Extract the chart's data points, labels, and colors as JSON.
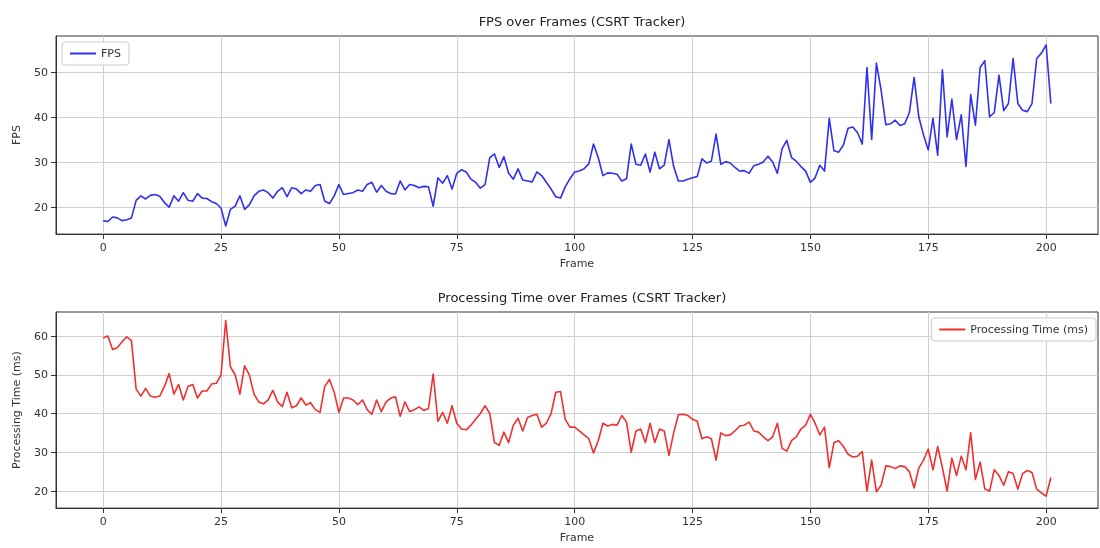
{
  "chart_data": [
    {
      "type": "line",
      "title": "FPS over Frames (CSRT Tracker)",
      "xlabel": "Frame",
      "ylabel": "FPS",
      "legend": "top left",
      "grid": true,
      "xlim": [
        -10,
        211
      ],
      "xticks": [
        0,
        25,
        50,
        75,
        100,
        125,
        150,
        175,
        200
      ],
      "ylim": [
        14,
        58
      ],
      "yticks": [
        20,
        30,
        40,
        50
      ],
      "x": [
        0,
        1,
        2,
        3,
        4,
        5,
        6,
        7,
        8,
        9,
        10,
        11,
        12,
        13,
        14,
        15,
        16,
        17,
        18,
        19,
        20,
        21,
        22,
        23,
        24,
        25,
        26,
        27,
        28,
        29,
        30,
        31,
        32,
        33,
        34,
        35,
        36,
        37,
        38,
        39,
        40,
        41,
        42,
        43,
        44,
        45,
        46,
        47,
        48,
        49,
        50,
        51,
        52,
        53,
        54,
        55,
        56,
        57,
        58,
        59,
        60,
        61,
        62,
        63,
        64,
        65,
        66,
        67,
        68,
        69,
        70,
        71,
        72,
        73,
        74,
        75,
        76,
        77,
        78,
        79,
        80,
        81,
        82,
        83,
        84,
        85,
        86,
        87,
        88,
        89,
        90,
        91,
        92,
        93,
        94,
        95,
        96,
        97,
        98,
        99,
        100,
        101,
        102,
        103,
        104,
        105,
        106,
        107,
        108,
        109,
        110,
        111,
        112,
        113,
        114,
        115,
        116,
        117,
        118,
        119,
        120,
        121,
        122,
        123,
        124,
        125,
        126,
        127,
        128,
        129,
        130,
        131,
        132,
        133,
        134,
        135,
        136,
        137,
        138,
        139,
        140,
        141,
        142,
        143,
        144,
        145,
        146,
        147,
        148,
        149,
        150,
        151,
        152,
        153,
        154,
        155,
        156,
        157,
        158,
        159,
        160,
        161,
        162,
        163,
        164,
        165,
        166,
        167,
        168,
        169,
        170,
        171,
        172,
        173,
        174,
        175,
        176,
        177,
        178,
        179,
        180,
        181,
        182,
        183,
        184,
        185,
        186,
        187,
        188,
        189,
        190,
        191,
        192,
        193,
        194,
        195,
        196,
        197,
        198,
        199,
        200,
        201
      ],
      "series": [
        {
          "name": "FPS",
          "color": "#3030ee",
          "values": [
            17,
            16.8,
            17.8,
            17.6,
            17,
            17.2,
            17.6,
            21.5,
            22.5,
            21.8,
            22.6,
            22.8,
            22.4,
            21,
            20,
            22.5,
            21.3,
            23.2,
            21.5,
            21.3,
            23,
            22,
            21.9,
            21.2,
            20.8,
            19.8,
            15.8,
            19.5,
            20.2,
            22.5,
            19.5,
            20.5,
            22.5,
            23.5,
            23.8,
            23.2,
            22,
            23.5,
            24.3,
            22.3,
            24.3,
            24,
            23,
            23.8,
            23.5,
            24.8,
            25,
            21.3,
            20.8,
            22.5,
            25,
            22.8,
            23,
            23.2,
            23.8,
            23.5,
            25,
            25.5,
            23.3,
            24.8,
            23.5,
            23,
            22.9,
            25.8,
            23.8,
            25,
            24.8,
            24.3,
            24.6,
            24.5,
            20.2,
            26.5,
            25.3,
            27,
            24,
            27.5,
            28.3,
            27.8,
            26.2,
            25.5,
            24.2,
            25,
            31,
            31.8,
            28.8,
            31.2,
            27.5,
            26.2,
            28.5,
            26,
            25.8,
            25.6,
            27.8,
            27,
            25.5,
            24,
            22.3,
            22,
            24.5,
            26.3,
            27.8,
            28,
            28.5,
            29.6,
            34,
            31,
            27,
            27.6,
            27.5,
            27.3,
            25.8,
            26.3,
            34,
            29.5,
            29.3,
            31.8,
            27.8,
            32.2,
            28.5,
            29.3,
            35,
            29,
            25.8,
            25.8,
            26.2,
            26.5,
            26.8,
            30.7,
            29.8,
            30.2,
            36.2,
            29.5,
            30.1,
            29.8,
            28.8,
            28,
            28.1,
            27.5,
            29.2,
            29.5,
            30,
            31.3,
            30,
            27.5,
            33,
            34.8,
            31,
            30.2,
            29,
            28,
            25.5,
            26.5,
            29.3,
            28,
            39.7,
            32.5,
            32.2,
            33.8,
            37.5,
            37.8,
            36.5,
            34,
            51,
            35,
            52,
            46,
            38.3,
            38.5,
            39.3,
            38.1,
            38.5,
            41,
            48.8,
            40,
            36,
            32.7,
            39.7,
            31.5,
            50.5,
            35.6,
            44,
            35,
            40.5,
            29,
            45,
            38.2,
            51,
            52.5,
            40,
            41,
            49.3,
            41.4,
            43,
            53,
            43,
            41.5,
            41.2,
            43,
            53,
            54.2,
            56,
            43
          ]
        }
      ]
    },
    {
      "type": "line",
      "title": "Processing Time over Frames (CSRT Tracker)",
      "xlabel": "Frame",
      "ylabel": "Processing Time (ms)",
      "legend": "top right",
      "grid": true,
      "xlim": [
        -10,
        211
      ],
      "xticks": [
        0,
        25,
        50,
        75,
        100,
        125,
        150,
        175,
        200
      ],
      "ylim": [
        15.6,
        66.2
      ],
      "yticks": [
        20,
        30,
        40,
        50,
        60
      ],
      "x": [
        0,
        1,
        2,
        3,
        4,
        5,
        6,
        7,
        8,
        9,
        10,
        11,
        12,
        13,
        14,
        15,
        16,
        17,
        18,
        19,
        20,
        21,
        22,
        23,
        24,
        25,
        26,
        27,
        28,
        29,
        30,
        31,
        32,
        33,
        34,
        35,
        36,
        37,
        38,
        39,
        40,
        41,
        42,
        43,
        44,
        45,
        46,
        47,
        48,
        49,
        50,
        51,
        52,
        53,
        54,
        55,
        56,
        57,
        58,
        59,
        60,
        61,
        62,
        63,
        64,
        65,
        66,
        67,
        68,
        69,
        70,
        71,
        72,
        73,
        74,
        75,
        76,
        77,
        78,
        79,
        80,
        81,
        82,
        83,
        84,
        85,
        86,
        87,
        88,
        89,
        90,
        91,
        92,
        93,
        94,
        95,
        96,
        97,
        98,
        99,
        100,
        101,
        102,
        103,
        104,
        105,
        106,
        107,
        108,
        109,
        110,
        111,
        112,
        113,
        114,
        115,
        116,
        117,
        118,
        119,
        120,
        121,
        122,
        123,
        124,
        125,
        126,
        127,
        128,
        129,
        130,
        131,
        132,
        133,
        134,
        135,
        136,
        137,
        138,
        139,
        140,
        141,
        142,
        143,
        144,
        145,
        146,
        147,
        148,
        149,
        150,
        151,
        152,
        153,
        154,
        155,
        156,
        157,
        158,
        159,
        160,
        161,
        162,
        163,
        164,
        165,
        166,
        167,
        168,
        169,
        170,
        171,
        172,
        173,
        174,
        175,
        176,
        177,
        178,
        179,
        180,
        181,
        182,
        183,
        184,
        185,
        186,
        187,
        188,
        189,
        190,
        191,
        192,
        193,
        194,
        195,
        196,
        197,
        198,
        199,
        200,
        201
      ],
      "series": [
        {
          "name": "Processing Time (ms)",
          "color": "#ee3030",
          "values": [
            59.5,
            60,
            56.5,
            57,
            58.5,
            59.8,
            58.8,
            46.3,
            44.5,
            46.5,
            44.5,
            44.2,
            44.5,
            47,
            50.3,
            45,
            47.5,
            43.5,
            47,
            47.5,
            44,
            45.8,
            45.8,
            47.6,
            47.8,
            50,
            64,
            52,
            50,
            45,
            52.3,
            50,
            45,
            43,
            42.5,
            43.5,
            46,
            43,
            41.8,
            45.5,
            41.5,
            42,
            44,
            42.2,
            42.8,
            41,
            40.3,
            47,
            48.8,
            45.5,
            40.3,
            44,
            44,
            43.5,
            42.3,
            43.5,
            41,
            39.8,
            43.5,
            40.5,
            43,
            44,
            44.3,
            39.3,
            43,
            40.5,
            41,
            41.7,
            40.8,
            41.3,
            50.2,
            38,
            40.3,
            37.5,
            42,
            37.5,
            36,
            35.8,
            37,
            38.5,
            40,
            42,
            40,
            32.5,
            31.8,
            35.2,
            32.5,
            37,
            38.8,
            35.5,
            39,
            39.5,
            39.8,
            36.5,
            37.5,
            40,
            45.5,
            45.7,
            38.5,
            36.5,
            36.5,
            35.5,
            34.5,
            33.5,
            29.8,
            33,
            37.5,
            36.8,
            37.2,
            37,
            39.5,
            37.8,
            30,
            35.5,
            36,
            32.5,
            37.5,
            32.5,
            36,
            35.5,
            29.2,
            35,
            39.7,
            39.8,
            39.5,
            38.5,
            38,
            33.5,
            34,
            33.5,
            28,
            35,
            34.3,
            34.5,
            35.5,
            36.8,
            37,
            37.8,
            35.5,
            35.2,
            34,
            33,
            34,
            37.5,
            31,
            30.3,
            33,
            34,
            36,
            37,
            39.8,
            37.5,
            34.5,
            36.5,
            26,
            32.5,
            33,
            31.5,
            29.5,
            28.8,
            29,
            30.2,
            20,
            28,
            19.8,
            21.5,
            26.5,
            26.3,
            25.8,
            26.5,
            26.3,
            25,
            20.8,
            26,
            28,
            30.8,
            25.5,
            31.5,
            26,
            20,
            28.5,
            24,
            29,
            25.5,
            35,
            23,
            27.5,
            20.5,
            20,
            25.5,
            24,
            21.5,
            25,
            24.5,
            20.5,
            24.5,
            25.3,
            24.8,
            20.5,
            19.5,
            18.7,
            23.5
          ]
        }
      ]
    }
  ]
}
